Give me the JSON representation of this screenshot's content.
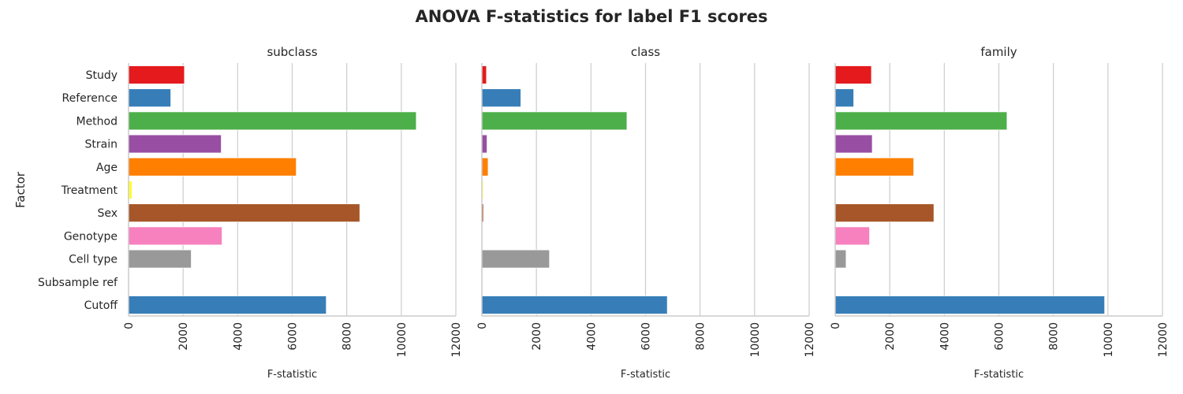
{
  "title": "ANOVA F-statistics for label F1 scores",
  "chart_data": {
    "type": "bar",
    "orientation": "horizontal",
    "title": "ANOVA F-statistics for label F1 scores",
    "xlabel": "F-statistic",
    "ylabel": "Factor",
    "xlim": [
      0,
      12000
    ],
    "xticks": [
      "0",
      "2000",
      "4000",
      "6000",
      "8000",
      "10000",
      "12000"
    ],
    "grid": "vertical",
    "categories": [
      "Study",
      "Reference",
      "Method",
      "Strain",
      "Age",
      "Treatment",
      "Sex",
      "Genotype",
      "Cell type",
      "Subsample ref",
      "Cutoff"
    ],
    "colors": [
      "#e41a1c",
      "#377eb8",
      "#4daf4a",
      "#984ea3",
      "#ff7f00",
      "#ffff33",
      "#a65628",
      "#f781bf",
      "#999999",
      "#e41a1c",
      "#377eb8"
    ],
    "facets": [
      {
        "name": "subclass",
        "values": [
          2050,
          1550,
          10550,
          3400,
          6150,
          130,
          8480,
          3430,
          2300,
          0,
          7250
        ]
      },
      {
        "name": "class",
        "values": [
          170,
          1430,
          5320,
          190,
          230,
          50,
          60,
          0,
          2480,
          0,
          6800
        ]
      },
      {
        "name": "family",
        "values": [
          1330,
          680,
          6300,
          1360,
          2880,
          0,
          3620,
          1260,
          400,
          0,
          9880
        ]
      }
    ]
  }
}
